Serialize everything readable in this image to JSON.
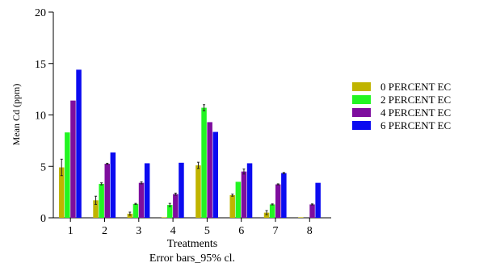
{
  "chart_data": {
    "type": "bar",
    "xlabel": "Treatments",
    "subtitle": "Error bars_95% cl.",
    "ylabel": "Mean Cd (ppm)",
    "categories": [
      "1",
      "2",
      "3",
      "4",
      "5",
      "6",
      "7",
      "8"
    ],
    "ylim": [
      0,
      20
    ],
    "yticks": [
      0,
      5,
      10,
      15,
      20
    ],
    "grid": false,
    "legend_position": "right",
    "series": [
      {
        "name": "0 PERCENT EC",
        "color": "#c0b400",
        "values": [
          4.9,
          1.7,
          0.4,
          0.05,
          5.1,
          2.2,
          0.5,
          0.05
        ],
        "errors": [
          0.8,
          0.4,
          0.15,
          0.0,
          0.3,
          0.1,
          0.2,
          0.0
        ]
      },
      {
        "name": "2 PERCENT EC",
        "color": "#22f522",
        "values": [
          8.3,
          3.3,
          1.35,
          1.25,
          10.7,
          3.5,
          1.3,
          0.0
        ],
        "errors": [
          0.0,
          0.1,
          0.05,
          0.15,
          0.3,
          0.0,
          0.05,
          0.0
        ]
      },
      {
        "name": "4 PERCENT EC",
        "color": "#7e0d9e",
        "values": [
          11.4,
          5.25,
          3.4,
          2.3,
          9.3,
          4.5,
          3.25,
          1.3
        ],
        "errors": [
          0.0,
          0.05,
          0.1,
          0.1,
          0.0,
          0.25,
          0.05,
          0.05
        ]
      },
      {
        "name": "6 PERCENT EC",
        "color": "#0b0bf0",
        "values": [
          14.4,
          6.35,
          5.3,
          5.35,
          8.35,
          5.3,
          4.35,
          3.4
        ],
        "errors": [
          0.0,
          0.0,
          0.0,
          0.0,
          0.0,
          0.0,
          0.05,
          0.0
        ]
      }
    ]
  }
}
